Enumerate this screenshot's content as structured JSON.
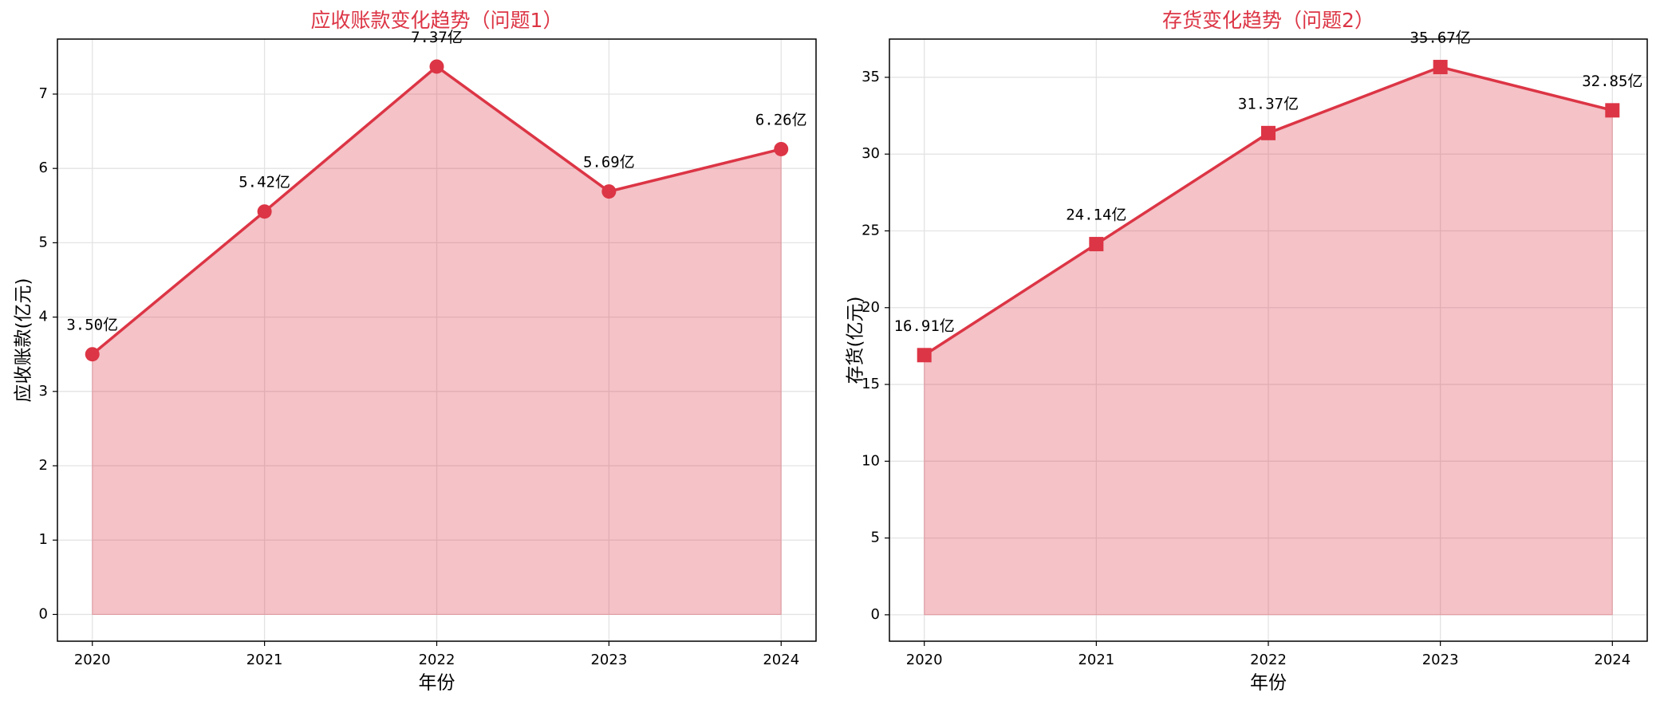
{
  "chart_data": [
    {
      "type": "area",
      "title": "应收账款变化趋势（问题1）",
      "x_label": "年份",
      "y_label": "应收账款(亿元)",
      "categories": [
        "2020",
        "2021",
        "2022",
        "2023",
        "2024"
      ],
      "values": [
        3.5,
        5.42,
        7.37,
        5.69,
        6.26
      ],
      "value_labels": [
        "3.50亿",
        "5.42亿",
        "7.37亿",
        "5.69亿",
        "6.26亿"
      ],
      "color": "#dc3545",
      "marker": "circle",
      "ylim": [
        -0.36,
        7.74
      ],
      "yticks": [
        0,
        1,
        2,
        3,
        4,
        5,
        6,
        7
      ],
      "grid": true
    },
    {
      "type": "area",
      "title": "存货变化趋势（问题2）",
      "x_label": "年份",
      "y_label": "存货(亿元)",
      "categories": [
        "2020",
        "2021",
        "2022",
        "2023",
        "2024"
      ],
      "values": [
        16.91,
        24.14,
        31.37,
        35.67,
        32.85
      ],
      "value_labels": [
        "16.91亿",
        "24.14亿",
        "31.37亿",
        "35.67亿",
        "32.85亿"
      ],
      "color": "#dc3545",
      "marker": "square",
      "ylim": [
        -1.72,
        37.49
      ],
      "yticks": [
        0,
        5,
        10,
        15,
        20,
        25,
        30,
        35
      ],
      "grid": true
    }
  ]
}
